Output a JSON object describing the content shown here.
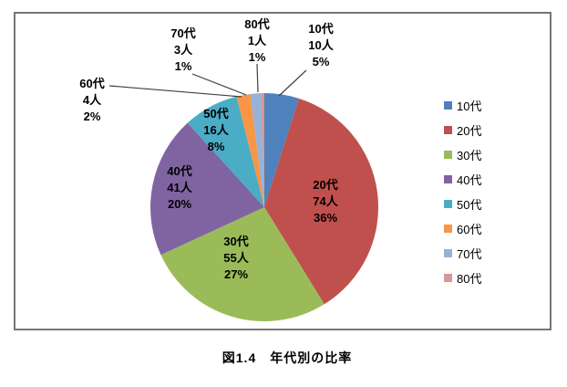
{
  "figure": {
    "caption": "図1.4　年代別の比率"
  },
  "chart_data": {
    "type": "pie",
    "title": "図1.4　年代別の比率",
    "categories": [
      "10代",
      "20代",
      "30代",
      "40代",
      "50代",
      "60代",
      "70代",
      "80代"
    ],
    "values": [
      10,
      74,
      55,
      41,
      16,
      4,
      3,
      1
    ],
    "counts_labels": [
      "10人",
      "74人",
      "55人",
      "41人",
      "16人",
      "4人",
      "3人",
      "1人"
    ],
    "percent_labels": [
      "5%",
      "36%",
      "27%",
      "20%",
      "8%",
      "2%",
      "1%",
      "1%"
    ],
    "colors": [
      "#4f81bd",
      "#c0504d",
      "#9bbb59",
      "#8064a2",
      "#4bacc6",
      "#f79646",
      "#95b3d7",
      "#d99694"
    ],
    "start_angle_deg": 0,
    "direction": "clockwise",
    "legend_position": "right",
    "inside_label_indices": [
      1,
      2,
      3,
      4
    ],
    "outside_label_indices": [
      0,
      5,
      6,
      7
    ],
    "leader_line_color": "#3f3f3f",
    "frame_border_color": "#767676"
  }
}
